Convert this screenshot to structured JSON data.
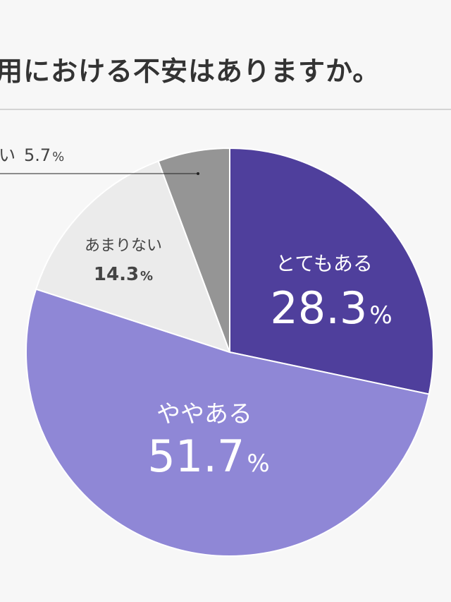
{
  "title": "用における不安はありますか。",
  "chart_data": {
    "type": "pie",
    "slices": [
      {
        "label": "とてもある",
        "value": 28.3,
        "value_text": "28.3",
        "unit": "%",
        "color": "#4f3f9c"
      },
      {
        "label": "ややある",
        "value": 51.7,
        "value_text": "51.7",
        "unit": "%",
        "color": "#8f87d6"
      },
      {
        "label": "あまりない",
        "value": 14.3,
        "value_text": "14.3",
        "unit": "%",
        "color": "#ebebeb"
      },
      {
        "label": "い",
        "value": 5.7,
        "value_text": "5.7",
        "unit": "%",
        "color": "#959595"
      }
    ]
  }
}
